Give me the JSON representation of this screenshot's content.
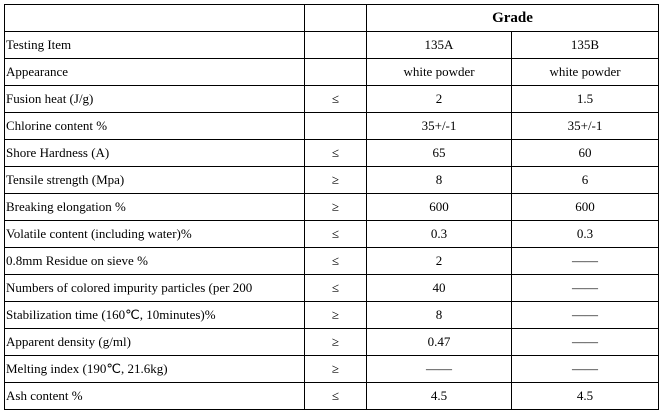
{
  "table": {
    "header": "Grade",
    "rows": [
      {
        "item": "Testing Item",
        "a": "135A",
        "b": "135B"
      },
      {
        "item": "Appearance",
        "a": "white powder",
        "b": "white powder"
      },
      {
        "item": "Fusion heat (J/g)",
        "symbol": "≤",
        "a": "2",
        "b": "1.5"
      },
      {
        "item": "Chlorine content %",
        "a": "35+/-1",
        "b": "35+/-1"
      },
      {
        "item": "Shore Hardness (A)",
        "symbol": "≤",
        "a": "65",
        "b": "60"
      },
      {
        "item": "Tensile strength (Mpa)",
        "symbol": "≥",
        "a": "8",
        "b": "6"
      },
      {
        "item": "Breaking elongation %",
        "symbol": "≥",
        "a": "600",
        "b": "600"
      },
      {
        "item": "Volatile content (including water)%",
        "symbol": "≤",
        "a": "0.3",
        "b": "0.3"
      },
      {
        "item": "0.8mm Residue on sieve %",
        "symbol": "≤",
        "a": "2",
        "b": "——"
      },
      {
        "item": "Numbers of colored impurity particles (per 200",
        "symbol": "≤",
        "a": "40",
        "b": "——"
      },
      {
        "item": "Stabilization time (160℃, 10minutes)%",
        "symbol": "≥",
        "a": "8",
        "b": "——"
      },
      {
        "item": "Apparent density (g/ml)",
        "symbol": "≥",
        "a": "0.47",
        "b": "——"
      },
      {
        "item": "Melting index (190℃, 21.6kg)",
        "symbol": "≥",
        "a": "——",
        "b": "——"
      },
      {
        "item": "Ash content %",
        "symbol": "≤",
        "a": "4.5",
        "b": "4.5"
      }
    ]
  }
}
